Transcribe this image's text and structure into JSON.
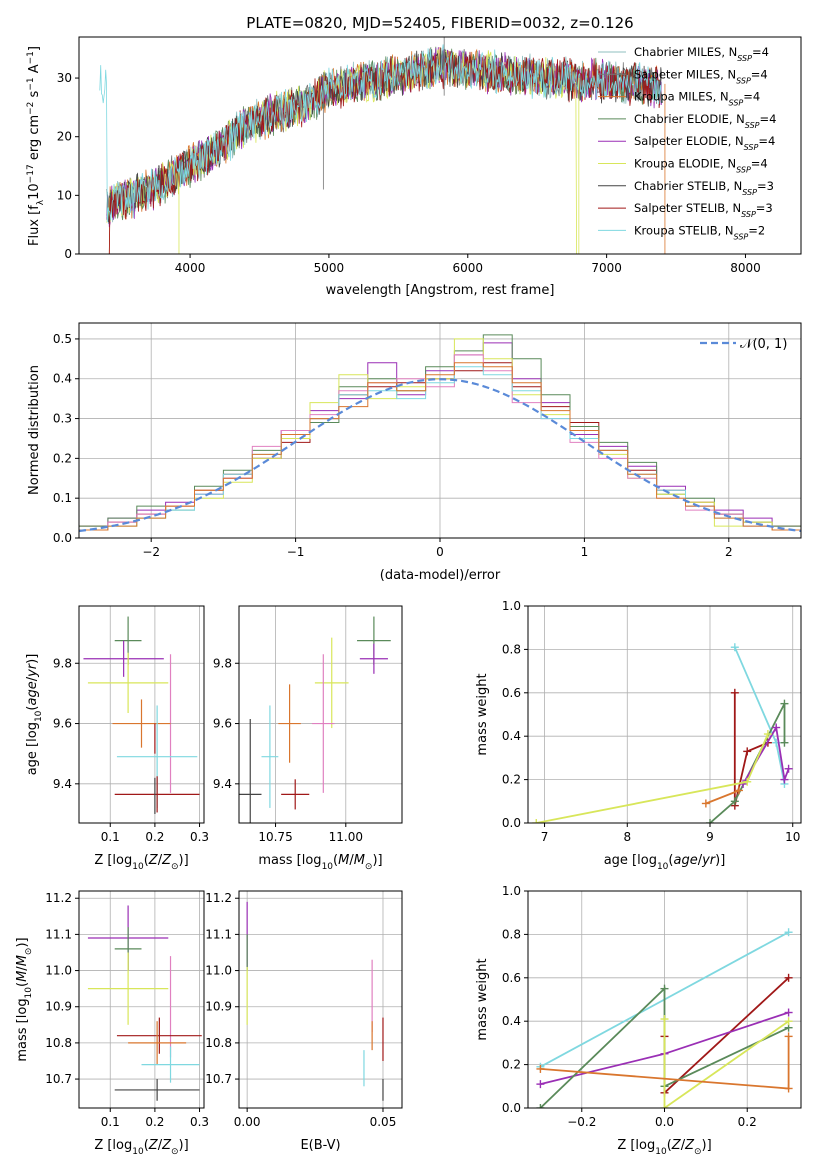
{
  "figure": {
    "title": "PLATE=0820, MJD=52405, FIBERID=0032, z=0.126",
    "colors": [
      "#8fbfbf",
      "#777777",
      "#d9762e",
      "#5a8a5a",
      "#9a2fb5",
      "#d8e65a",
      "#444444",
      "#a01818",
      "#7fd8e0"
    ]
  },
  "chart_data": [
    {
      "id": "spectrum",
      "type": "line",
      "xlabel": "wavelength [Angstrom, rest frame]",
      "ylabel": "Flux [f_λ 10^-17 erg cm^-2 s^-1 A^-1]",
      "xlim": [
        3200,
        8400
      ],
      "ylim": [
        0,
        37
      ],
      "xticks": [
        4000,
        5000,
        6000,
        7000,
        8000
      ],
      "yticks": [
        0,
        10,
        20,
        30
      ],
      "legend_position": "top-right",
      "x": [
        3400,
        3600,
        3800,
        4000,
        4200,
        4400,
        4600,
        4800,
        5000,
        5200,
        5400,
        5600,
        5800,
        6000,
        6200,
        6400,
        6600,
        6800,
        7000,
        7200,
        7400
      ],
      "y": [
        8,
        10,
        12,
        15,
        18,
        22,
        24,
        25,
        28,
        29,
        30,
        31,
        32,
        31.5,
        31,
        30.5,
        30,
        29.5,
        29.5,
        29,
        28.5
      ],
      "series": [
        {
          "name": "Chabrier MILES, N_SSP=4",
          "color": "#8fbfbf"
        },
        {
          "name": "Salpeter MILES, N_SSP=4",
          "color": "#777777"
        },
        {
          "name": "Kroupa MILES, N_SSP=4",
          "color": "#d9762e"
        },
        {
          "name": "Chabrier ELODIE, N_SSP=4",
          "color": "#5a8a5a"
        },
        {
          "name": "Salpeter ELODIE, N_SSP=4",
          "color": "#9a2fb5"
        },
        {
          "name": "Kroupa ELODIE, N_SSP=4",
          "color": "#d8e65a"
        },
        {
          "name": "Chabrier STELIB, N_SSP=3",
          "color": "#444444"
        },
        {
          "name": "Salpeter STELIB, N_SSP=3",
          "color": "#a01818"
        },
        {
          "name": "Kroupa STELIB, N_SSP=2",
          "color": "#7fd8e0"
        }
      ]
    },
    {
      "id": "residuals",
      "type": "bar",
      "xlabel": "(data-model)/error",
      "ylabel": "Normed distribution",
      "xlim": [
        -2.5,
        2.5
      ],
      "ylim": [
        0,
        0.54
      ],
      "xticks": [
        -2,
        -1,
        0,
        1,
        2
      ],
      "yticks": [
        0.0,
        0.1,
        0.2,
        0.3,
        0.4,
        0.5
      ],
      "legend": "𝒩(0, 1)",
      "legend_position": "top-right",
      "bin_edges": [
        -2.5,
        -2.3,
        -2.1,
        -1.9,
        -1.7,
        -1.5,
        -1.3,
        -1.1,
        -0.9,
        -0.7,
        -0.5,
        -0.3,
        -0.1,
        0.1,
        0.3,
        0.5,
        0.7,
        0.9,
        1.1,
        1.3,
        1.5,
        1.7,
        1.9,
        2.1,
        2.3,
        2.5
      ],
      "series": [
        {
          "color": "#a01818",
          "values": [
            0.03,
            0.04,
            0.06,
            0.08,
            0.12,
            0.16,
            0.2,
            0.24,
            0.3,
            0.36,
            0.38,
            0.39,
            0.4,
            0.42,
            0.44,
            0.38,
            0.33,
            0.29,
            0.22,
            0.17,
            0.12,
            0.09,
            0.06,
            0.04,
            0.03
          ]
        },
        {
          "color": "#9a2fb5",
          "values": [
            0.02,
            0.05,
            0.07,
            0.09,
            0.11,
            0.15,
            0.2,
            0.27,
            0.32,
            0.35,
            0.44,
            0.36,
            0.42,
            0.46,
            0.49,
            0.4,
            0.34,
            0.26,
            0.23,
            0.18,
            0.13,
            0.08,
            0.07,
            0.05,
            0.02
          ]
        },
        {
          "color": "#5a8a5a",
          "values": [
            0.03,
            0.05,
            0.08,
            0.07,
            0.13,
            0.17,
            0.22,
            0.26,
            0.29,
            0.38,
            0.4,
            0.37,
            0.43,
            0.47,
            0.51,
            0.45,
            0.36,
            0.28,
            0.24,
            0.19,
            0.11,
            0.1,
            0.06,
            0.04,
            0.03
          ]
        },
        {
          "color": "#d8e65a",
          "values": [
            0.02,
            0.03,
            0.05,
            0.08,
            0.1,
            0.14,
            0.2,
            0.25,
            0.34,
            0.41,
            0.35,
            0.38,
            0.4,
            0.5,
            0.45,
            0.36,
            0.31,
            0.25,
            0.21,
            0.15,
            0.11,
            0.09,
            0.03,
            0.04,
            0.02
          ]
        },
        {
          "color": "#e080c0",
          "values": [
            0.02,
            0.04,
            0.06,
            0.08,
            0.11,
            0.15,
            0.23,
            0.27,
            0.31,
            0.37,
            0.39,
            0.4,
            0.38,
            0.46,
            0.42,
            0.34,
            0.3,
            0.24,
            0.2,
            0.15,
            0.12,
            0.07,
            0.06,
            0.03,
            0.02
          ]
        },
        {
          "color": "#7fd8e0",
          "values": [
            0.02,
            0.03,
            0.05,
            0.07,
            0.11,
            0.16,
            0.21,
            0.26,
            0.3,
            0.36,
            0.37,
            0.35,
            0.39,
            0.43,
            0.41,
            0.37,
            0.3,
            0.25,
            0.22,
            0.16,
            0.12,
            0.08,
            0.05,
            0.03,
            0.02
          ]
        },
        {
          "color": "#d9762e",
          "values": [
            0.02,
            0.03,
            0.05,
            0.08,
            0.12,
            0.15,
            0.21,
            0.26,
            0.3,
            0.33,
            0.39,
            0.37,
            0.41,
            0.44,
            0.43,
            0.39,
            0.32,
            0.27,
            0.22,
            0.16,
            0.1,
            0.08,
            0.05,
            0.03,
            0.02
          ]
        }
      ],
      "normal_curve": {
        "mean": 0,
        "sigma": 1,
        "color": "#5a8ad8"
      }
    },
    {
      "id": "z-age",
      "type": "scatter",
      "xlabel": "Z [log10(Z/Z_⊙)]",
      "ylabel": "age [log10(age/yr)]",
      "xlim": [
        0.03,
        0.31
      ],
      "ylim": [
        9.27,
        9.99
      ],
      "xticks": [
        0.1,
        0.2,
        0.3
      ],
      "yticks": [
        9.4,
        9.6,
        9.8
      ],
      "points": [
        {
          "x": 0.14,
          "y": 9.875,
          "xerr": 0.03,
          "yerr": 0.08,
          "color": "#5a8a5a"
        },
        {
          "x": 0.13,
          "y": 9.815,
          "xerr": 0.09,
          "yerr": 0.06,
          "color": "#9a2fb5"
        },
        {
          "x": 0.14,
          "y": 9.735,
          "xerr": 0.09,
          "yerr": 0.1,
          "color": "#d8e65a"
        },
        {
          "x": 0.235,
          "y": 9.6,
          "xerr": 0.0,
          "yerr": 0.23,
          "color": "#e080c0"
        },
        {
          "x": 0.17,
          "y": 9.6,
          "xerr": 0.065,
          "yerr": 0.08,
          "color": "#d9762e"
        },
        {
          "x": 0.205,
          "y": 9.49,
          "xerr": 0.09,
          "yerr": 0.17,
          "color": "#7fd8e0"
        },
        {
          "x": 0.2,
          "y": 9.55,
          "xerr": 0.0,
          "yerr": 0.05,
          "color": "#a01818"
        },
        {
          "x": 0.205,
          "y": 9.365,
          "xerr": 0.095,
          "yerr": 0.06,
          "color": "#a01818"
        },
        {
          "x": 0.2,
          "y": 9.36,
          "xerr": 0.0,
          "yerr": 0.06,
          "color": "#444444"
        }
      ]
    },
    {
      "id": "mass-age",
      "type": "scatter",
      "xlabel": "mass [log10(M/M_⊙)]",
      "ylabel": "",
      "xlim": [
        10.62,
        11.2
      ],
      "ylim": [
        9.27,
        9.99
      ],
      "xticks": [
        10.75,
        11.0
      ],
      "yticks": [
        9.4,
        9.6,
        9.8
      ],
      "points": [
        {
          "x": 11.1,
          "y": 9.875,
          "xerr": 0.06,
          "yerr": 0.08,
          "color": "#5a8a5a"
        },
        {
          "x": 11.1,
          "y": 9.815,
          "xerr": 0.05,
          "yerr": 0.05,
          "color": "#9a2fb5"
        },
        {
          "x": 10.95,
          "y": 9.735,
          "xerr": 0.06,
          "yerr": 0.15,
          "color": "#d8e65a"
        },
        {
          "x": 10.92,
          "y": 9.6,
          "xerr": 0.04,
          "yerr": 0.23,
          "color": "#e080c0"
        },
        {
          "x": 10.8,
          "y": 9.6,
          "xerr": 0.04,
          "yerr": 0.13,
          "color": "#d9762e"
        },
        {
          "x": 10.73,
          "y": 9.49,
          "xerr": 0.03,
          "yerr": 0.17,
          "color": "#7fd8e0"
        },
        {
          "x": 10.82,
          "y": 9.365,
          "xerr": 0.05,
          "yerr": 0.05,
          "color": "#a01818"
        },
        {
          "x": 10.66,
          "y": 9.365,
          "xerr": 0.04,
          "yerr": 0.25,
          "color": "#444444"
        }
      ]
    },
    {
      "id": "age-weight",
      "type": "line",
      "xlabel": "age [log10(age/yr)]",
      "ylabel": "mass weight",
      "xlim": [
        6.8,
        10.1
      ],
      "ylim": [
        0,
        1
      ],
      "xticks": [
        7,
        8,
        9,
        10
      ],
      "yticks": [
        0.0,
        0.2,
        0.4,
        0.6,
        0.8,
        1.0
      ],
      "series": [
        {
          "color": "#7fd8e0",
          "x": [
            9.3,
            9.8,
            9.9
          ],
          "y": [
            0.81,
            0.37,
            0.18
          ]
        },
        {
          "color": "#a01818",
          "x": [
            9.3,
            9.3,
            9.45,
            9.7
          ],
          "y": [
            0.6,
            0.08,
            0.33,
            0.37
          ]
        },
        {
          "color": "#5a8a5a",
          "x": [
            9.0,
            9.3,
            9.9,
            9.9
          ],
          "y": [
            0.0,
            0.1,
            0.55,
            0.37
          ]
        },
        {
          "color": "#9a2fb5",
          "x": [
            9.4,
            9.8,
            9.9,
            9.95
          ],
          "y": [
            0.18,
            0.44,
            0.2,
            0.25
          ]
        },
        {
          "color": "#d8e65a",
          "x": [
            6.9,
            9.45,
            9.7
          ],
          "y": [
            0.0,
            0.19,
            0.41
          ]
        },
        {
          "color": "#d9762e",
          "x": [
            8.95,
            9.35
          ],
          "y": [
            0.09,
            0.15
          ]
        }
      ]
    },
    {
      "id": "z-mass",
      "type": "scatter",
      "xlabel": "Z [log10(Z/Z_⊙)]",
      "ylabel": "mass [log10(M/M_⊙)]",
      "xlim": [
        0.03,
        0.31
      ],
      "ylim": [
        10.62,
        11.22
      ],
      "xticks": [
        0.1,
        0.2,
        0.3
      ],
      "yticks": [
        10.7,
        10.8,
        10.9,
        11.0,
        11.1,
        11.2
      ],
      "points": [
        {
          "x": 0.14,
          "y": 11.09,
          "xerr": 0.09,
          "yerr": 0.09,
          "color": "#9a2fb5"
        },
        {
          "x": 0.14,
          "y": 11.06,
          "xerr": 0.03,
          "yerr": 0.06,
          "color": "#5a8a5a"
        },
        {
          "x": 0.14,
          "y": 10.95,
          "xerr": 0.09,
          "yerr": 0.1,
          "color": "#d8e65a"
        },
        {
          "x": 0.235,
          "y": 10.9,
          "xerr": 0.0,
          "yerr": 0.14,
          "color": "#e080c0"
        },
        {
          "x": 0.21,
          "y": 10.82,
          "xerr": 0.095,
          "yerr": 0.05,
          "color": "#a01818"
        },
        {
          "x": 0.205,
          "y": 10.8,
          "xerr": 0.065,
          "yerr": 0.06,
          "color": "#d9762e"
        },
        {
          "x": 0.235,
          "y": 10.74,
          "xerr": 0.065,
          "yerr": 0.05,
          "color": "#7fd8e0"
        },
        {
          "x": 0.205,
          "y": 10.67,
          "xerr": 0.095,
          "yerr": 0.03,
          "color": "#444444"
        }
      ]
    },
    {
      "id": "ebv-mass",
      "type": "scatter",
      "xlabel": "E(B-V)",
      "ylabel": "",
      "xlim": [
        -0.003,
        0.057
      ],
      "ylim": [
        10.62,
        11.22
      ],
      "xticks": [
        0.0,
        0.05
      ],
      "yticks": [
        10.7,
        10.8,
        10.9,
        11.0,
        11.1,
        11.2
      ],
      "points": [
        {
          "x": 0.0,
          "y": 11.1,
          "xerr": 0,
          "yerr": 0.09,
          "color": "#9a2fb5"
        },
        {
          "x": 0.0,
          "y": 11.05,
          "xerr": 0,
          "yerr": 0.05,
          "color": "#5a8a5a"
        },
        {
          "x": 0.0,
          "y": 10.93,
          "xerr": 0,
          "yerr": 0.08,
          "color": "#d8e65a"
        },
        {
          "x": 0.046,
          "y": 10.93,
          "xerr": 0,
          "yerr": 0.1,
          "color": "#e080c0"
        },
        {
          "x": 0.046,
          "y": 10.82,
          "xerr": 0,
          "yerr": 0.04,
          "color": "#d9762e"
        },
        {
          "x": 0.05,
          "y": 10.81,
          "xerr": 0,
          "yerr": 0.06,
          "color": "#a01818"
        },
        {
          "x": 0.043,
          "y": 10.73,
          "xerr": 0,
          "yerr": 0.05,
          "color": "#7fd8e0"
        },
        {
          "x": 0.05,
          "y": 10.67,
          "xerr": 0,
          "yerr": 0.03,
          "color": "#444444"
        }
      ]
    },
    {
      "id": "z-weight",
      "type": "line",
      "xlabel": "Z [log10(Z/Z_⊙)]",
      "ylabel": "mass weight",
      "xlim": [
        -0.33,
        0.33
      ],
      "ylim": [
        0,
        1
      ],
      "xticks": [
        -0.2,
        0.0,
        0.2
      ],
      "yticks": [
        0.0,
        0.2,
        0.4,
        0.6,
        0.8,
        1.0
      ],
      "series": [
        {
          "color": "#7fd8e0",
          "x": [
            -0.3,
            0.3
          ],
          "y": [
            0.19,
            0.81
          ]
        },
        {
          "color": "#a01818",
          "x": [
            0.0,
            0.0,
            0.3
          ],
          "y": [
            0.33,
            0.07,
            0.6
          ]
        },
        {
          "color": "#9a2fb5",
          "x": [
            -0.3,
            0.0,
            0.3
          ],
          "y": [
            0.11,
            0.25,
            0.44
          ]
        },
        {
          "color": "#5a8a5a",
          "x": [
            -0.3,
            0.0,
            0.0,
            0.3
          ],
          "y": [
            0.0,
            0.55,
            0.1,
            0.37
          ]
        },
        {
          "color": "#d8e65a",
          "x": [
            0.0,
            0.0,
            0.3
          ],
          "y": [
            0.41,
            0.0,
            0.4
          ]
        },
        {
          "color": "#d9762e",
          "x": [
            -0.3,
            0.3,
            0.3
          ],
          "y": [
            0.18,
            0.09,
            0.33
          ]
        }
      ]
    }
  ]
}
